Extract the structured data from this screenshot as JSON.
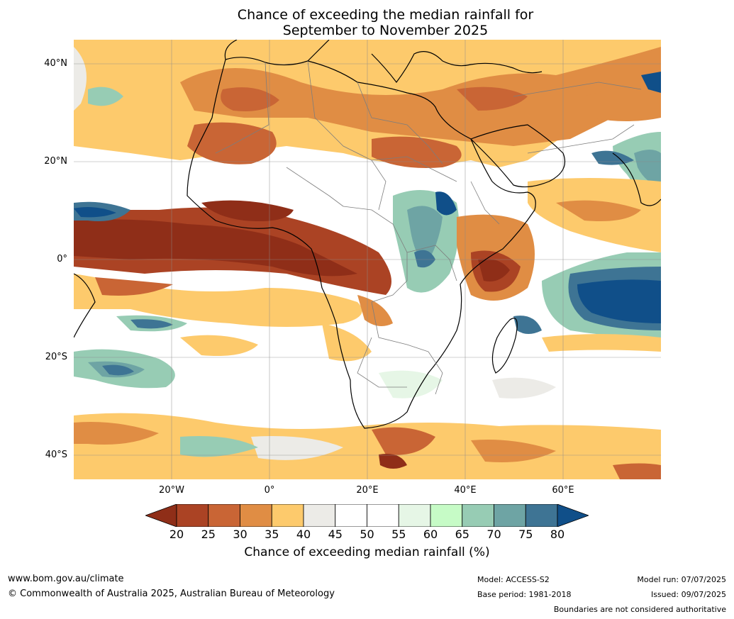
{
  "title": {
    "line1": "Chance of exceeding the median rainfall for",
    "line2": "September to November 2025"
  },
  "map": {
    "lat_labels": [
      "40°N",
      "20°N",
      "0°",
      "20°S",
      "40°S"
    ],
    "lon_labels": [
      "20°W",
      "0°",
      "20°E",
      "40°E",
      "60°E"
    ]
  },
  "colorbar": {
    "ticks": [
      "20",
      "25",
      "30",
      "35",
      "40",
      "45",
      "50",
      "55",
      "60",
      "65",
      "70",
      "75",
      "80"
    ],
    "colors": [
      "#8f2e18",
      "#ab4324",
      "#c96535",
      "#e08d44",
      "#fdca6c",
      "#ecebe7",
      "#ffffff",
      "#ffffff",
      "#e6f6e6",
      "#c6fbc6",
      "#97ccb4",
      "#6ea4a4",
      "#3e7494",
      "#104f89"
    ],
    "label": "Chance of exceeding median rainfall (%)"
  },
  "footer": {
    "url": "www.bom.gov.au/climate",
    "copyright": "© Commonwealth of Australia 2025, Australian Bureau of Meteorology",
    "model": "Model: ACCESS-S2",
    "base_period": "Base period: 1981-2018",
    "model_run": "Model run: 07/07/2025",
    "issued": "Issued: 09/07/2025",
    "disclaimer": "Boundaries are not considered authoritative"
  }
}
